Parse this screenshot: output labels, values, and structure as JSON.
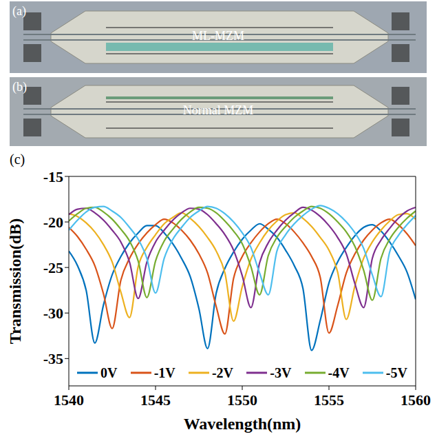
{
  "panels": [
    {
      "label": "(a)",
      "text": "ML-MZM"
    },
    {
      "label": "(b)",
      "text": "Normal MZM"
    }
  ],
  "chart_data": {
    "type": "line",
    "label": "(c)",
    "x_label": "Wavelength(nm)",
    "y_label": "Transmission(dB)",
    "x": [
      1540,
      1540.5,
      1541,
      1541.5,
      1542,
      1542.5,
      1543,
      1543.5,
      1544,
      1544.5,
      1545,
      1545.5,
      1546,
      1546.5,
      1547,
      1547.5,
      1548,
      1548.5,
      1549,
      1549.5,
      1550,
      1550.5,
      1551,
      1551.5,
      1552,
      1552.5,
      1553,
      1553.5,
      1554,
      1554.5,
      1555,
      1555.5,
      1556,
      1556.5,
      1557,
      1557.5,
      1558,
      1558.5,
      1559,
      1559.5,
      1560
    ],
    "xlim": [
      1540,
      1560
    ],
    "xticks": [
      1540,
      1545,
      1550,
      1555,
      1560
    ],
    "ylim": [
      -38,
      -15
    ],
    "yticks": [
      -35,
      -30,
      -25,
      -20,
      -15
    ],
    "grid": false,
    "legend": "bottom",
    "series": [
      {
        "name": "0V",
        "color": "#0072BD",
        "values": [
          -23.2,
          -24.8,
          -27.5,
          -33.3,
          -29.1,
          -25.8,
          -23.8,
          -22.3,
          -21.2,
          -20.4,
          -20.4,
          -21.2,
          -22.4,
          -24.0,
          -26.0,
          -29.5,
          -33.9,
          -27.8,
          -25.1,
          -23.3,
          -21.9,
          -20.9,
          -20.2,
          -20.8,
          -21.7,
          -23.1,
          -24.8,
          -27.3,
          -34.1,
          -30.8,
          -26.7,
          -24.4,
          -22.8,
          -21.5,
          -20.6,
          -20.3,
          -21.0,
          -22.2,
          -23.7,
          -25.5,
          -28.5
        ]
      },
      {
        "name": "-1V",
        "color": "#D95319",
        "values": [
          -20.6,
          -21.6,
          -23.0,
          -24.8,
          -27.9,
          -31.7,
          -26.4,
          -24.0,
          -22.4,
          -21.2,
          -20.3,
          -19.7,
          -20.1,
          -20.9,
          -22.0,
          -23.5,
          -25.6,
          -29.3,
          -32.3,
          -26.2,
          -23.8,
          -22.3,
          -21.1,
          -20.2,
          -19.7,
          -20.2,
          -21.1,
          -22.3,
          -23.8,
          -26.1,
          -32.2,
          -29.2,
          -25.6,
          -23.5,
          -22.0,
          -20.9,
          -20.1,
          -19.7,
          -20.3,
          -21.3,
          -22.6
        ]
      },
      {
        "name": "-2V",
        "color": "#EDB120",
        "values": [
          -19.1,
          -19.4,
          -20.1,
          -21.1,
          -22.5,
          -24.4,
          -27.7,
          -30.5,
          -24.9,
          -22.8,
          -21.4,
          -20.2,
          -19.5,
          -19.0,
          -19.6,
          -20.5,
          -21.7,
          -23.2,
          -25.6,
          -30.9,
          -27.1,
          -24.1,
          -22.3,
          -20.9,
          -19.9,
          -19.2,
          -19.0,
          -19.6,
          -20.5,
          -21.7,
          -23.1,
          -25.5,
          -30.7,
          -27.0,
          -24.0,
          -22.2,
          -20.9,
          -19.9,
          -19.2,
          -19.1,
          -19.7
        ]
      },
      {
        "name": "-3V",
        "color": "#7E2F8E",
        "values": [
          -19.2,
          -18.6,
          -18.5,
          -19.0,
          -19.8,
          -20.9,
          -22.2,
          -24.4,
          -28.4,
          -24.4,
          -22.2,
          -20.9,
          -19.8,
          -19.0,
          -18.5,
          -18.6,
          -19.2,
          -20.2,
          -21.4,
          -23.1,
          -25.9,
          -29.4,
          -24.5,
          -22.3,
          -20.9,
          -19.8,
          -19.0,
          -18.4,
          -18.7,
          -19.4,
          -20.4,
          -21.7,
          -23.5,
          -26.8,
          -29.4,
          -24.0,
          -22.0,
          -20.7,
          -19.6,
          -18.8,
          -18.4
        ]
      },
      {
        "name": "-4V",
        "color": "#77AC30",
        "values": [
          -19.9,
          -19.1,
          -18.5,
          -18.4,
          -18.9,
          -19.7,
          -20.8,
          -22.1,
          -24.3,
          -28.3,
          -24.3,
          -22.1,
          -20.8,
          -19.7,
          -18.9,
          -18.4,
          -18.5,
          -19.0,
          -19.9,
          -21.0,
          -22.4,
          -24.9,
          -28.0,
          -23.7,
          -21.7,
          -20.5,
          -19.5,
          -18.8,
          -18.3,
          -18.5,
          -19.1,
          -20.0,
          -21.1,
          -22.7,
          -25.3,
          -28.6,
          -24.0,
          -21.9,
          -20.6,
          -19.6,
          -18.8
        ]
      },
      {
        "name": "-5V",
        "color": "#4DBEEE",
        "values": [
          -20.9,
          -19.8,
          -18.9,
          -18.4,
          -18.3,
          -18.8,
          -19.5,
          -20.6,
          -21.9,
          -24.0,
          -27.8,
          -24.0,
          -21.9,
          -20.6,
          -19.5,
          -18.8,
          -18.3,
          -18.5,
          -19.1,
          -20.0,
          -21.2,
          -22.8,
          -25.6,
          -28.0,
          -23.2,
          -21.4,
          -20.2,
          -19.3,
          -18.6,
          -18.2,
          -18.5,
          -19.1,
          -20.0,
          -21.2,
          -22.9,
          -25.8,
          -28.2,
          -23.3,
          -21.5,
          -20.3,
          -19.3
        ]
      }
    ]
  }
}
